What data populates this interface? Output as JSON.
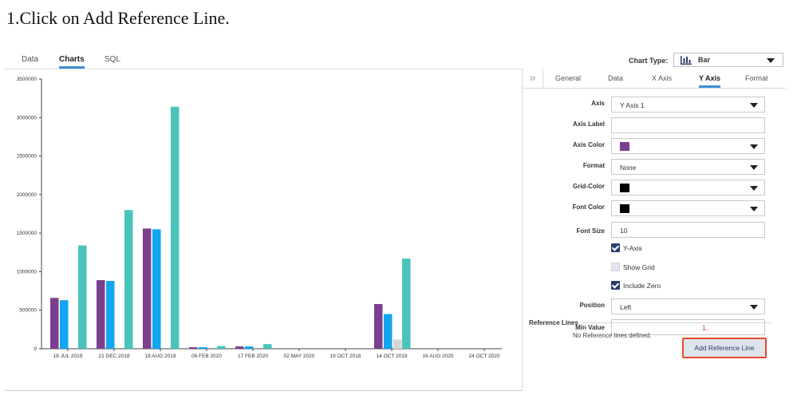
{
  "instruction": "1.Click on Add Reference Line.",
  "top_tabs": [
    {
      "label": "Data"
    },
    {
      "label": "Charts"
    },
    {
      "label": "SQL"
    }
  ],
  "chart_type": {
    "label": "Chart Type:",
    "value": "Bar"
  },
  "panel_tabs": [
    {
      "label": "General"
    },
    {
      "label": "Data"
    },
    {
      "label": "X Axis"
    },
    {
      "label": "Y Axis"
    },
    {
      "label": "Format"
    }
  ],
  "fields": {
    "axis": {
      "label": "Axis",
      "value": "Y Axis 1"
    },
    "axis_label": {
      "label": "Axis Label",
      "value": ""
    },
    "axis_color": {
      "label": "Axis Color",
      "color": "#7b3f8f"
    },
    "format": {
      "label": "Format",
      "value": "None"
    },
    "grid_color": {
      "label": "Grid-Color",
      "color": "#000000"
    },
    "font_color": {
      "label": "Font Color",
      "color": "#000000"
    },
    "font_size": {
      "label": "Font Size",
      "value": "10"
    },
    "y_axis_check": {
      "label": "Y-Axis",
      "checked": true
    },
    "show_grid_check": {
      "label": "Show Grid",
      "checked": false
    },
    "include_zero_check": {
      "label": "Include Zero",
      "checked": true
    },
    "position": {
      "label": "Position",
      "value": "Left"
    },
    "min_value": {
      "label": "Min Value",
      "value": ""
    }
  },
  "reference_lines": {
    "title": "Reference Lines",
    "empty_text": "No Reference lines defined.",
    "step_marker": "1.",
    "add_button": "Add Reference Line"
  },
  "colors": {
    "series1": "#7b3f8f",
    "series2": "#12a6f0",
    "series3": "#49c4bb",
    "series4": "#d6d6d6",
    "accent": "#3d8fd6",
    "highlight": "#e64a2e"
  },
  "chart_data": {
    "type": "bar",
    "categories": [
      "18 JUL 2019",
      "21 DEC 2018",
      "18 AUG 2019",
      "08 FEB 2020",
      "17 FEB 2020",
      "02 MAY 2020",
      "19 OCT 2018",
      "14 OCT 2019",
      "16 AUG 2020",
      "24 OCT 2020"
    ],
    "series": [
      {
        "values": [
          660000,
          890000,
          1560000,
          20000,
          30000,
          0,
          0,
          580000,
          0,
          0
        ]
      },
      {
        "values": [
          630000,
          880000,
          1550000,
          20000,
          30000,
          0,
          0,
          450000,
          0,
          0
        ]
      },
      {
        "values": [
          0,
          0,
          0,
          0,
          0,
          0,
          0,
          120000,
          0,
          0
        ]
      },
      {
        "values": [
          1340000,
          1800000,
          3140000,
          35000,
          60000,
          0,
          0,
          1170000,
          0,
          0
        ]
      }
    ],
    "yticks": [
      "3500000",
      "3000000",
      "2500000",
      "2000000",
      "1500000",
      "1000000",
      "500000",
      "0"
    ],
    "ylim": [
      0,
      3500000
    ],
    "grid": false
  }
}
